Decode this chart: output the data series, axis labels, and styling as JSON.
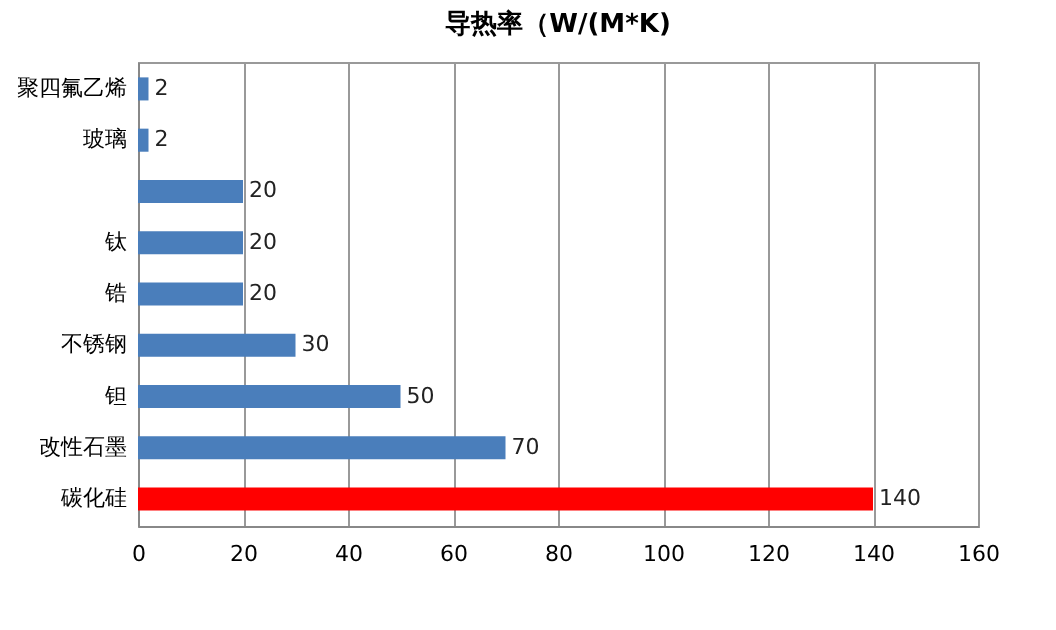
{
  "chart_data": {
    "type": "bar",
    "orientation": "horizontal",
    "title": "导热率（W/(M*K)",
    "categories": [
      "聚四氟乙烯",
      "玻璃",
      null,
      "钛",
      "锆",
      "不锈钢",
      "钽",
      "改性石墨",
      "碳化硅"
    ],
    "values": [
      2,
      2,
      20,
      20,
      20,
      30,
      50,
      70,
      140
    ],
    "colors": [
      "#4a7ebb",
      "#4a7ebb",
      "#4a7ebb",
      "#4a7ebb",
      "#4a7ebb",
      "#4a7ebb",
      "#4a7ebb",
      "#4a7ebb",
      "#ff0000"
    ],
    "xlim": [
      0,
      160
    ],
    "xticks": [
      0,
      20,
      40,
      60,
      80,
      100,
      120,
      140,
      160
    ],
    "grid": "x",
    "data_labels": true
  }
}
